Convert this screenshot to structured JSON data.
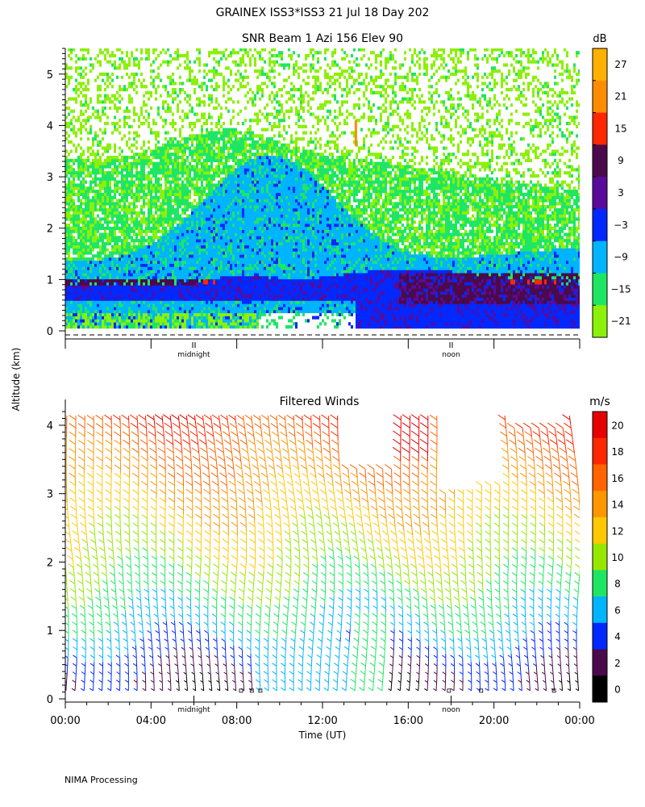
{
  "header": {
    "title": "GRAINEX ISS3*ISS3  21 Jul 18 Day 202",
    "subtitle": "SNR Beam 1 Azi 156 Elev 90"
  },
  "shared": {
    "y_axis_label": "Altitude (km)",
    "x_axis_label": "Time (UT)",
    "x_ticks": [
      "00:00",
      "04:00",
      "08:00",
      "12:00",
      "16:00",
      "20:00",
      "00:00"
    ],
    "day_markers": [
      "midnight",
      "noon"
    ],
    "footer": "NIMA Processing"
  },
  "chart_data": [
    {
      "type": "heatmap",
      "title": "SNR Beam 1 Azi 156 Elev 90",
      "ylabel": "Altitude (km)",
      "ylim": [
        0,
        5.5
      ],
      "y_ticks": [
        "0",
        "1",
        "2",
        "3",
        "4",
        "5"
      ],
      "xlim_hours": [
        0,
        24
      ],
      "colorbar": {
        "unit": "dB",
        "tick_labels": [
          "27",
          "21",
          "15",
          "9",
          "3",
          "−3",
          "−9",
          "−15",
          "−21"
        ],
        "colors": [
          "#ffb000",
          "#ff8c00",
          "#ff2800",
          "#4b0a4b",
          "#5a0a9a",
          "#0028ff",
          "#00b4ff",
          "#1ee664",
          "#8cf00a"
        ]
      },
      "layers": [
        {
          "name": "strong-low",
          "color": "#4b0a4b",
          "alt_km_start": 0.9,
          "alt_km_end": 1.0
        },
        {
          "name": "blue-boundary-layer",
          "color": "#0028ff",
          "alt_km_start": 0.6,
          "alt_km_end": 1.3
        },
        {
          "name": "cyan-mid",
          "color": "#00b4ff",
          "alt_km_start": 1.3,
          "alt_km_end": 3.5
        },
        {
          "name": "green-upper",
          "color": "#1ee664",
          "alt_km_start": 2.0,
          "alt_km_end": 4.0
        },
        {
          "name": "yellowgreen-top",
          "color": "#8cf00a",
          "alt_km_start": 3.5,
          "alt_km_end": 5.5
        }
      ]
    },
    {
      "type": "wind-barbs",
      "title": "Filtered Winds",
      "ylabel": "Altitude (km)",
      "ylim": [
        0,
        4.2
      ],
      "y_ticks": [
        "0",
        "1",
        "2",
        "3",
        "4"
      ],
      "xlim_hours": [
        0,
        24
      ],
      "colorbar": {
        "unit": "m/s",
        "tick_labels": [
          "20",
          "18",
          "16",
          "14",
          "12",
          "10",
          "8",
          "6",
          "4",
          "2",
          "0"
        ],
        "colors": [
          "#e60000",
          "#ff2800",
          "#ff6400",
          "#ff9600",
          "#ffc800",
          "#96e600",
          "#1ee664",
          "#00b4ff",
          "#0028ff",
          "#4b0a4b",
          "#000000"
        ]
      },
      "typical_speed_ms_by_altitude": [
        {
          "alt_km": 0.3,
          "speed_ms": 2
        },
        {
          "alt_km": 1.0,
          "speed_ms": 6
        },
        {
          "alt_km": 1.5,
          "speed_ms": 8
        },
        {
          "alt_km": 2.0,
          "speed_ms": 10
        },
        {
          "alt_km": 2.6,
          "speed_ms": 12
        },
        {
          "alt_km": 3.2,
          "speed_ms": 14
        },
        {
          "alt_km": 3.8,
          "speed_ms": 16
        },
        {
          "alt_km": 4.1,
          "speed_ms": 18
        }
      ]
    }
  ]
}
